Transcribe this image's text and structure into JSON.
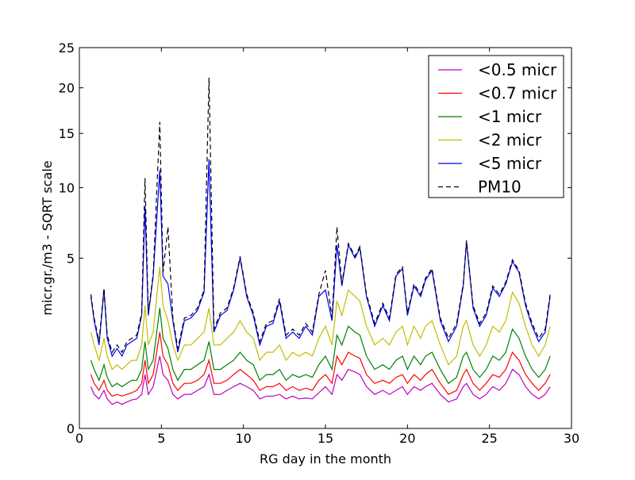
{
  "chart_data": {
    "type": "line",
    "title": "",
    "xlabel": "RG day in the month",
    "ylabel": "micr.gr./m3 - SQRT scale",
    "xlim": [
      0,
      30
    ],
    "ylim": [
      0,
      25
    ],
    "y_scale": "sqrt",
    "x_ticks": [
      0,
      5,
      10,
      15,
      20,
      25,
      30
    ],
    "x_tick_labels": [
      "0",
      "5",
      "10",
      "15",
      "20",
      "25",
      "30"
    ],
    "y_ticks": [
      0,
      5,
      10,
      15,
      20,
      25
    ],
    "y_tick_labels": [
      "0",
      "5",
      "10",
      "15",
      "20",
      "25"
    ],
    "grid": false,
    "legend_position": "top-right",
    "x": [
      0.7,
      0.9,
      1.2,
      1.5,
      1.7,
      2.0,
      2.3,
      2.6,
      2.9,
      3.2,
      3.5,
      3.8,
      4.0,
      4.2,
      4.5,
      4.9,
      5.1,
      5.4,
      5.7,
      6.0,
      6.4,
      6.8,
      7.2,
      7.6,
      7.9,
      8.2,
      8.6,
      9.0,
      9.4,
      9.8,
      10.2,
      10.6,
      11.0,
      11.4,
      11.8,
      12.2,
      12.6,
      13.0,
      13.4,
      13.8,
      14.2,
      14.6,
      15.0,
      15.4,
      15.7,
      16.0,
      16.4,
      16.8,
      17.1,
      17.5,
      18.0,
      18.5,
      18.9,
      19.3,
      19.7,
      20.0,
      20.4,
      20.8,
      21.1,
      21.5,
      22.0,
      22.5,
      23.0,
      23.4,
      23.6,
      24.0,
      24.4,
      24.8,
      25.2,
      25.6,
      26.0,
      26.4,
      26.8,
      27.2,
      27.6,
      28.0,
      28.4,
      28.7
    ],
    "series": [
      {
        "name": "<0.5 micr",
        "color": "#bf00bf",
        "dash": "solid",
        "values": [
          0.3,
          0.2,
          0.15,
          0.25,
          0.15,
          0.1,
          0.12,
          0.1,
          0.12,
          0.14,
          0.15,
          0.2,
          0.5,
          0.2,
          0.3,
          0.9,
          0.5,
          0.4,
          0.2,
          0.15,
          0.2,
          0.2,
          0.25,
          0.3,
          0.5,
          0.2,
          0.2,
          0.25,
          0.3,
          0.35,
          0.3,
          0.25,
          0.15,
          0.18,
          0.18,
          0.2,
          0.15,
          0.18,
          0.15,
          0.16,
          0.15,
          0.22,
          0.3,
          0.2,
          0.5,
          0.4,
          0.6,
          0.55,
          0.5,
          0.3,
          0.2,
          0.25,
          0.2,
          0.25,
          0.3,
          0.2,
          0.3,
          0.25,
          0.3,
          0.35,
          0.2,
          0.12,
          0.15,
          0.3,
          0.35,
          0.2,
          0.15,
          0.2,
          0.3,
          0.25,
          0.35,
          0.6,
          0.5,
          0.3,
          0.2,
          0.15,
          0.2,
          0.3
        ]
      },
      {
        "name": "<0.7 micr",
        "color": "#ff0000",
        "dash": "solid",
        "values": [
          0.5,
          0.35,
          0.25,
          0.4,
          0.25,
          0.18,
          0.2,
          0.18,
          0.2,
          0.22,
          0.25,
          0.35,
          0.8,
          0.35,
          0.5,
          1.6,
          0.9,
          0.7,
          0.35,
          0.25,
          0.35,
          0.35,
          0.4,
          0.5,
          0.8,
          0.35,
          0.35,
          0.4,
          0.5,
          0.6,
          0.5,
          0.4,
          0.25,
          0.3,
          0.3,
          0.35,
          0.25,
          0.3,
          0.25,
          0.28,
          0.25,
          0.4,
          0.5,
          0.35,
          0.9,
          0.7,
          1.0,
          0.9,
          0.85,
          0.5,
          0.35,
          0.4,
          0.35,
          0.45,
          0.5,
          0.35,
          0.5,
          0.4,
          0.5,
          0.6,
          0.35,
          0.2,
          0.25,
          0.5,
          0.6,
          0.35,
          0.25,
          0.35,
          0.5,
          0.45,
          0.6,
          1.0,
          0.8,
          0.5,
          0.35,
          0.25,
          0.35,
          0.5
        ]
      },
      {
        "name": "<1 micr",
        "color": "#008000",
        "dash": "solid",
        "values": [
          0.8,
          0.6,
          0.4,
          0.7,
          0.45,
          0.3,
          0.35,
          0.3,
          0.35,
          0.4,
          0.4,
          0.6,
          1.3,
          0.6,
          0.8,
          2.5,
          1.4,
          1.1,
          0.6,
          0.4,
          0.6,
          0.6,
          0.7,
          0.8,
          1.3,
          0.6,
          0.6,
          0.7,
          0.8,
          1.0,
          0.8,
          0.7,
          0.4,
          0.5,
          0.5,
          0.6,
          0.4,
          0.5,
          0.45,
          0.5,
          0.45,
          0.7,
          0.9,
          0.6,
          1.5,
          1.2,
          1.8,
          1.6,
          1.5,
          0.9,
          0.6,
          0.7,
          0.6,
          0.8,
          0.9,
          0.6,
          0.9,
          0.7,
          0.9,
          1.0,
          0.6,
          0.35,
          0.45,
          0.9,
          1.0,
          0.6,
          0.45,
          0.6,
          0.9,
          0.8,
          1.0,
          1.7,
          1.4,
          0.9,
          0.6,
          0.45,
          0.6,
          0.9
        ]
      },
      {
        "name": "<2 micr",
        "color": "#bfbf00",
        "dash": "solid",
        "values": [
          1.6,
          1.2,
          0.8,
          1.4,
          0.9,
          0.6,
          0.7,
          0.6,
          0.7,
          0.8,
          0.8,
          1.2,
          2.6,
          1.2,
          1.6,
          4.5,
          2.6,
          2.0,
          1.2,
          0.8,
          1.2,
          1.2,
          1.4,
          1.6,
          2.5,
          1.2,
          1.2,
          1.4,
          1.6,
          2.0,
          1.6,
          1.4,
          0.8,
          1.0,
          1.0,
          1.2,
          0.8,
          1.0,
          0.9,
          1.0,
          0.9,
          1.4,
          1.8,
          1.2,
          2.8,
          2.2,
          3.3,
          3.0,
          2.8,
          1.8,
          1.2,
          1.4,
          1.2,
          1.6,
          1.8,
          1.2,
          1.8,
          1.4,
          1.8,
          2.0,
          1.2,
          0.7,
          0.9,
          1.8,
          2.0,
          1.2,
          0.9,
          1.2,
          1.8,
          1.6,
          2.0,
          3.2,
          2.7,
          1.8,
          1.2,
          0.9,
          1.2,
          1.8
        ]
      },
      {
        "name": "<5 micr",
        "color": "#0000ff",
        "dash": "solid",
        "values": [
          3.0,
          2.0,
          1.2,
          3.3,
          1.4,
          0.9,
          1.1,
          0.9,
          1.2,
          1.3,
          1.4,
          2.2,
          8.5,
          2.2,
          4.0,
          11.5,
          4.0,
          3.6,
          2.0,
          1.0,
          2.0,
          2.1,
          2.4,
          3.2,
          12.5,
          1.6,
          2.2,
          2.4,
          3.3,
          5.0,
          3.0,
          2.2,
          1.2,
          1.8,
          1.9,
          2.8,
          1.4,
          1.6,
          1.4,
          1.8,
          1.5,
          3.0,
          3.3,
          2.0,
          5.8,
          3.5,
          5.8,
          5.0,
          5.6,
          3.0,
          1.8,
          2.6,
          2.0,
          4.0,
          4.4,
          2.2,
          3.5,
          3.0,
          3.8,
          4.3,
          2.0,
          1.3,
          1.8,
          3.5,
          6.0,
          2.5,
          1.8,
          2.2,
          3.4,
          3.0,
          3.6,
          4.8,
          4.2,
          2.6,
          1.8,
          1.3,
          1.6,
          3.0
        ]
      },
      {
        "name": "PM10",
        "color": "#000000",
        "dash": "dashed",
        "values": [
          3.1,
          2.1,
          1.3,
          3.4,
          1.5,
          1.0,
          1.2,
          1.0,
          1.3,
          1.4,
          1.5,
          2.3,
          10.8,
          2.3,
          4.1,
          16.2,
          4.2,
          7.0,
          2.1,
          1.1,
          2.1,
          2.2,
          2.5,
          3.3,
          21.2,
          1.7,
          2.3,
          2.5,
          3.4,
          5.1,
          3.1,
          2.3,
          1.3,
          1.9,
          2.0,
          2.9,
          1.5,
          1.7,
          1.5,
          1.9,
          1.6,
          3.1,
          4.3,
          2.1,
          7.0,
          3.6,
          5.9,
          5.1,
          5.7,
          3.1,
          1.9,
          2.7,
          2.1,
          4.1,
          4.5,
          2.3,
          3.6,
          3.1,
          3.9,
          4.4,
          2.1,
          1.4,
          1.9,
          3.6,
          6.1,
          2.6,
          1.9,
          2.3,
          3.5,
          3.1,
          3.7,
          4.9,
          4.3,
          2.7,
          1.9,
          1.4,
          1.7,
          3.1
        ]
      }
    ]
  }
}
